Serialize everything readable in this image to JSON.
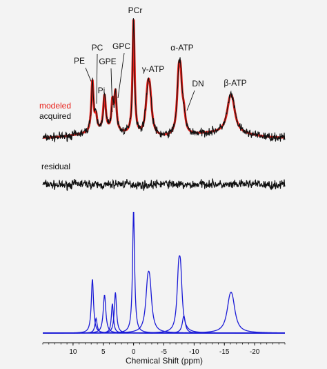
{
  "chart_data": {
    "type": "line",
    "xlabel": "Chemical Shift (ppm)",
    "x_reversed": true,
    "xlim": [
      15,
      -25
    ],
    "x_ticks": [
      {
        "value": 10,
        "label": "10"
      },
      {
        "value": 5,
        "label": "5"
      },
      {
        "value": 0,
        "label": "0"
      },
      {
        "value": -5,
        "label": "-5"
      },
      {
        "value": -10,
        "label": "-10"
      },
      {
        "value": -15,
        "label": "-15"
      },
      {
        "value": -20,
        "label": "-20"
      }
    ],
    "peaks": [
      {
        "label": "PE",
        "ppm": 6.8,
        "height": 0.44,
        "width": 0.22,
        "split": 0.0
      },
      {
        "label": "PC",
        "ppm": 6.2,
        "height": 0.12,
        "width": 0.22,
        "split": 0.0
      },
      {
        "label": "Pi",
        "ppm": 4.8,
        "height": 0.31,
        "width": 0.26,
        "split": 0.0
      },
      {
        "label": "GPE",
        "ppm": 3.5,
        "height": 0.24,
        "width": 0.2,
        "split": 0.0
      },
      {
        "label": "GPC",
        "ppm": 3.0,
        "height": 0.33,
        "width": 0.22,
        "split": 0.0
      },
      {
        "label": "PCr",
        "ppm": 0.0,
        "height": 1.0,
        "width": 0.2,
        "split": 0.0
      },
      {
        "label": "γ-ATP",
        "ppm": -2.5,
        "height": 0.47,
        "width": 0.4,
        "split": 0.35
      },
      {
        "label": "α-ATP",
        "ppm": -7.6,
        "height": 0.59,
        "width": 0.32,
        "split": 0.32
      },
      {
        "label": "DN",
        "ppm": -8.3,
        "height": 0.14,
        "width": 0.3,
        "split": 0.0
      },
      {
        "label": "β-ATP",
        "ppm": -16.1,
        "height": 0.31,
        "width": 0.6,
        "split": 0.45
      }
    ],
    "series": [
      {
        "name": "modeled",
        "color": "#e8201a"
      },
      {
        "name": "acquired",
        "color": "#111111"
      },
      {
        "name": "residual",
        "color": "#111111"
      }
    ],
    "component_color": "#1a1ad6"
  }
}
